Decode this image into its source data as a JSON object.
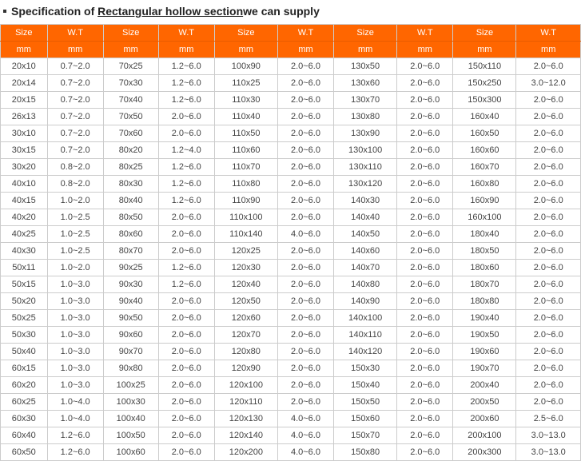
{
  "title": {
    "prefix": "Specification of ",
    "underlined": "Rectangular hollow section",
    "suffix": "we can supply"
  },
  "headers": {
    "size": "Size",
    "wt": "W.T",
    "mm": "mm"
  },
  "columns": 5,
  "rows": [
    [
      {
        "s": "20x10",
        "w": "0.7~2.0"
      },
      {
        "s": "70x25",
        "w": "1.2~6.0"
      },
      {
        "s": "100x90",
        "w": "2.0~6.0"
      },
      {
        "s": "130x50",
        "w": "2.0~6.0"
      },
      {
        "s": "150x110",
        "w": "2.0~6.0"
      }
    ],
    [
      {
        "s": "20x14",
        "w": "0.7~2.0"
      },
      {
        "s": "70x30",
        "w": "1.2~6.0"
      },
      {
        "s": "110x25",
        "w": "2.0~6.0"
      },
      {
        "s": "130x60",
        "w": "2.0~6.0"
      },
      {
        "s": "150x250",
        "w": "3.0~12.0"
      }
    ],
    [
      {
        "s": "20x15",
        "w": "0.7~2.0"
      },
      {
        "s": "70x40",
        "w": "1.2~6.0"
      },
      {
        "s": "110x30",
        "w": "2.0~6.0"
      },
      {
        "s": "130x70",
        "w": "2.0~6.0"
      },
      {
        "s": "150x300",
        "w": "2.0~6.0"
      }
    ],
    [
      {
        "s": "26x13",
        "w": "0.7~2.0"
      },
      {
        "s": "70x50",
        "w": "2.0~6.0"
      },
      {
        "s": "110x40",
        "w": "2.0~6.0"
      },
      {
        "s": "130x80",
        "w": "2.0~6.0"
      },
      {
        "s": "160x40",
        "w": "2.0~6.0"
      }
    ],
    [
      {
        "s": "30x10",
        "w": "0.7~2.0"
      },
      {
        "s": "70x60",
        "w": "2.0~6.0"
      },
      {
        "s": "110x50",
        "w": "2.0~6.0"
      },
      {
        "s": "130x90",
        "w": "2.0~6.0"
      },
      {
        "s": "160x50",
        "w": "2.0~6.0"
      }
    ],
    [
      {
        "s": "30x15",
        "w": "0.7~2.0"
      },
      {
        "s": "80x20",
        "w": "1.2~4.0"
      },
      {
        "s": "110x60",
        "w": "2.0~6.0"
      },
      {
        "s": "130x100",
        "w": "2.0~6.0"
      },
      {
        "s": "160x60",
        "w": "2.0~6.0"
      }
    ],
    [
      {
        "s": "30x20",
        "w": "0.8~2.0"
      },
      {
        "s": "80x25",
        "w": "1.2~6.0"
      },
      {
        "s": "110x70",
        "w": "2.0~6.0"
      },
      {
        "s": "130x110",
        "w": "2.0~6.0"
      },
      {
        "s": "160x70",
        "w": "2.0~6.0"
      }
    ],
    [
      {
        "s": "40x10",
        "w": "0.8~2.0"
      },
      {
        "s": "80x30",
        "w": "1.2~6.0"
      },
      {
        "s": "110x80",
        "w": "2.0~6.0"
      },
      {
        "s": "130x120",
        "w": "2.0~6.0"
      },
      {
        "s": "160x80",
        "w": "2.0~6.0"
      }
    ],
    [
      {
        "s": "40x15",
        "w": "1.0~2.0"
      },
      {
        "s": "80x40",
        "w": "1.2~6.0"
      },
      {
        "s": "110x90",
        "w": "2.0~6.0"
      },
      {
        "s": "140x30",
        "w": "2.0~6.0"
      },
      {
        "s": "160x90",
        "w": "2.0~6.0"
      }
    ],
    [
      {
        "s": "40x20",
        "w": "1.0~2.5"
      },
      {
        "s": "80x50",
        "w": "2.0~6.0"
      },
      {
        "s": "110x100",
        "w": "2.0~6.0"
      },
      {
        "s": "140x40",
        "w": "2.0~6.0"
      },
      {
        "s": "160x100",
        "w": "2.0~6.0"
      }
    ],
    [
      {
        "s": "40x25",
        "w": "1.0~2.5"
      },
      {
        "s": "80x60",
        "w": "2.0~6.0"
      },
      {
        "s": "110x140",
        "w": "4.0~6.0"
      },
      {
        "s": "140x50",
        "w": "2.0~6.0"
      },
      {
        "s": "180x40",
        "w": "2.0~6.0"
      }
    ],
    [
      {
        "s": "40x30",
        "w": "1.0~2.5"
      },
      {
        "s": "80x70",
        "w": "2.0~6.0"
      },
      {
        "s": "120x25",
        "w": "2.0~6.0"
      },
      {
        "s": "140x60",
        "w": "2.0~6.0"
      },
      {
        "s": "180x50",
        "w": "2.0~6.0"
      }
    ],
    [
      {
        "s": "50x11",
        "w": "1.0~2.0"
      },
      {
        "s": "90x25",
        "w": "1.2~6.0"
      },
      {
        "s": "120x30",
        "w": "2.0~6.0"
      },
      {
        "s": "140x70",
        "w": "2.0~6.0"
      },
      {
        "s": "180x60",
        "w": "2.0~6.0"
      }
    ],
    [
      {
        "s": "50x15",
        "w": "1.0~3.0"
      },
      {
        "s": "90x30",
        "w": "1.2~6.0"
      },
      {
        "s": "120x40",
        "w": "2.0~6.0"
      },
      {
        "s": "140x80",
        "w": "2.0~6.0"
      },
      {
        "s": "180x70",
        "w": "2.0~6.0"
      }
    ],
    [
      {
        "s": "50x20",
        "w": "1.0~3.0"
      },
      {
        "s": "90x40",
        "w": "2.0~6.0"
      },
      {
        "s": "120x50",
        "w": "2.0~6.0"
      },
      {
        "s": "140x90",
        "w": "2.0~6.0"
      },
      {
        "s": "180x80",
        "w": "2.0~6.0"
      }
    ],
    [
      {
        "s": "50x25",
        "w": "1.0~3.0"
      },
      {
        "s": "90x50",
        "w": "2.0~6.0"
      },
      {
        "s": "120x60",
        "w": "2.0~6.0"
      },
      {
        "s": "140x100",
        "w": "2.0~6.0"
      },
      {
        "s": "190x40",
        "w": "2.0~6.0"
      }
    ],
    [
      {
        "s": "50x30",
        "w": "1.0~3.0"
      },
      {
        "s": "90x60",
        "w": "2.0~6.0"
      },
      {
        "s": "120x70",
        "w": "2.0~6.0"
      },
      {
        "s": "140x110",
        "w": "2.0~6.0"
      },
      {
        "s": "190x50",
        "w": "2.0~6.0"
      }
    ],
    [
      {
        "s": "50x40",
        "w": "1.0~3.0"
      },
      {
        "s": "90x70",
        "w": "2.0~6.0"
      },
      {
        "s": "120x80",
        "w": "2.0~6.0"
      },
      {
        "s": "140x120",
        "w": "2.0~6.0"
      },
      {
        "s": "190x60",
        "w": "2.0~6.0"
      }
    ],
    [
      {
        "s": "60x15",
        "w": "1.0~3.0"
      },
      {
        "s": "90x80",
        "w": "2.0~6.0"
      },
      {
        "s": "120x90",
        "w": "2.0~6.0"
      },
      {
        "s": "150x30",
        "w": "2.0~6.0"
      },
      {
        "s": "190x70",
        "w": "2.0~6.0"
      }
    ],
    [
      {
        "s": "60x20",
        "w": "1.0~3.0"
      },
      {
        "s": "100x25",
        "w": "2.0~6.0"
      },
      {
        "s": "120x100",
        "w": "2.0~6.0"
      },
      {
        "s": "150x40",
        "w": "2.0~6.0"
      },
      {
        "s": "200x40",
        "w": "2.0~6.0"
      }
    ],
    [
      {
        "s": "60x25",
        "w": "1.0~4.0"
      },
      {
        "s": "100x30",
        "w": "2.0~6.0"
      },
      {
        "s": "120x110",
        "w": "2.0~6.0"
      },
      {
        "s": "150x50",
        "w": "2.0~6.0"
      },
      {
        "s": "200x50",
        "w": "2.0~6.0"
      }
    ],
    [
      {
        "s": "60x30",
        "w": "1.0~4.0"
      },
      {
        "s": "100x40",
        "w": "2.0~6.0"
      },
      {
        "s": "120x130",
        "w": "4.0~6.0"
      },
      {
        "s": "150x60",
        "w": "2.0~6.0"
      },
      {
        "s": "200x60",
        "w": "2.5~6.0"
      }
    ],
    [
      {
        "s": "60x40",
        "w": "1.2~6.0"
      },
      {
        "s": "100x50",
        "w": "2.0~6.0"
      },
      {
        "s": "120x140",
        "w": "4.0~6.0"
      },
      {
        "s": "150x70",
        "w": "2.0~6.0"
      },
      {
        "s": "200x100",
        "w": "3.0~13.0"
      }
    ],
    [
      {
        "s": "60x50",
        "w": "1.2~6.0"
      },
      {
        "s": "100x60",
        "w": "2.0~6.0"
      },
      {
        "s": "120x200",
        "w": "4.0~6.0"
      },
      {
        "s": "150x80",
        "w": "2.0~6.0"
      },
      {
        "s": "200x300",
        "w": "3.0~13.0"
      }
    ]
  ],
  "style": {
    "header_bg": "#ff6600",
    "header_color": "#ffffff",
    "border_color": "#cccccc",
    "text_color": "#444444"
  }
}
